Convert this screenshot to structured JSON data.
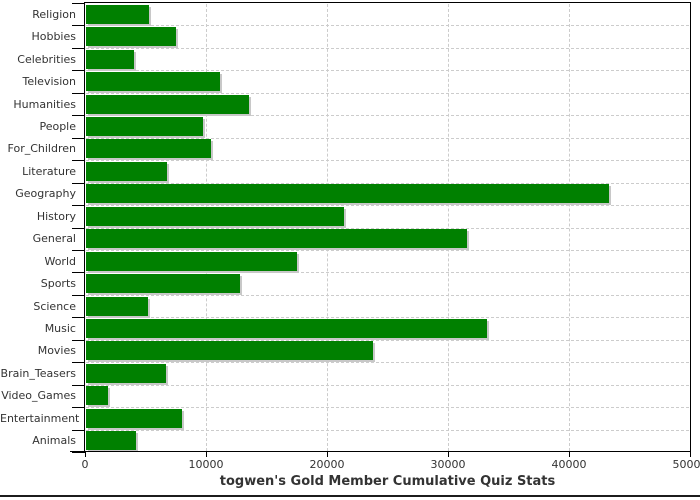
{
  "chart_data": {
    "type": "bar",
    "orientation": "horizontal",
    "title": "togwen's Gold Member Cumulative Quiz Stats",
    "categories": [
      "Religion",
      "Hobbies",
      "Celebrities",
      "Television",
      "Humanities",
      "People",
      "For_Children",
      "Literature",
      "Geography",
      "History",
      "General",
      "World",
      "Sports",
      "Science",
      "Music",
      "Movies",
      "Brain_Teasers",
      "Video_Games",
      "Entertainment",
      "Animals"
    ],
    "values": [
      5200,
      7400,
      4000,
      11100,
      13500,
      9700,
      10300,
      6700,
      43200,
      21300,
      31500,
      17400,
      12700,
      5100,
      33100,
      23700,
      6600,
      1800,
      7900,
      4100
    ],
    "xlim": [
      0,
      50000
    ],
    "x_tick_values": [
      0,
      10000,
      20000,
      30000,
      40000,
      50000
    ],
    "x_tick_labels": [
      "0",
      "10000",
      "20000",
      "30000",
      "40000",
      "50000"
    ],
    "grid": "dashed",
    "legend": "none",
    "colors": {
      "bar": "#008000",
      "bar_shadow": "#c8c8c8",
      "grid": "#cccccc",
      "axis": "#000000",
      "text": "#333333",
      "background": "#ffffff"
    }
  }
}
